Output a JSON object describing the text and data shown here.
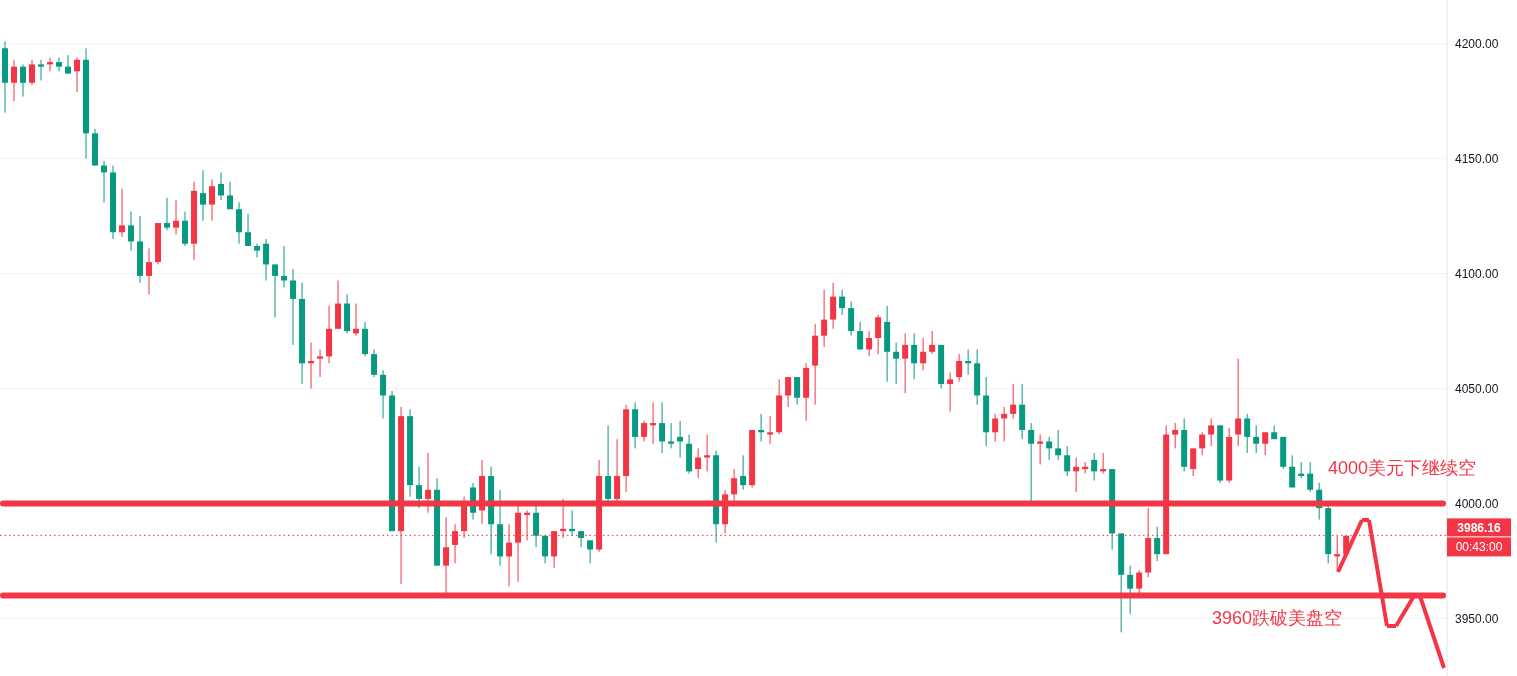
{
  "chart_data": {
    "type": "candlestick",
    "categories": [
      null,
      null,
      null,
      null,
      null,
      null,
      null,
      null,
      null,
      null,
      null,
      null,
      null,
      null,
      null,
      null,
      null,
      null,
      null,
      null,
      null,
      null,
      null,
      null,
      null,
      null,
      null,
      null,
      null,
      null,
      null,
      null,
      null,
      null,
      null,
      null,
      null,
      null,
      null,
      null,
      null,
      null,
      null,
      null,
      null,
      null,
      null,
      null,
      null,
      null,
      null,
      null,
      null,
      null,
      null,
      null,
      null,
      null,
      null,
      null,
      null,
      null,
      null,
      null,
      null,
      null,
      null,
      null,
      null,
      null,
      null,
      null,
      null,
      null,
      null,
      null,
      null,
      null,
      null,
      null,
      null,
      null,
      null,
      null,
      null,
      null,
      null,
      null,
      null,
      null,
      null,
      null,
      null,
      null,
      null,
      null,
      null,
      null,
      null,
      null,
      null,
      null,
      null,
      null,
      null,
      null,
      null,
      null,
      null,
      null,
      null,
      null,
      null,
      null,
      null,
      null,
      null,
      null,
      null,
      null,
      null,
      null,
      null,
      null,
      null,
      null,
      null,
      null,
      null,
      null,
      null,
      null,
      null,
      null,
      null,
      null,
      null,
      null,
      null,
      null,
      null,
      null,
      null,
      null,
      null,
      null,
      null,
      null,
      null,
      null,
      null,
      null,
      null,
      null,
      null,
      null,
      null,
      null,
      null,
      null,
      null
    ],
    "ohlc": [
      [
        4198,
        4201,
        4170,
        4183
      ],
      [
        4183,
        4193,
        4175,
        4190
      ],
      [
        4190,
        4191,
        4177,
        4183
      ],
      [
        4183,
        4193,
        4182,
        4191
      ],
      [
        4191,
        4193,
        4184,
        4190
      ],
      [
        4191,
        4194,
        4188,
        4192
      ],
      [
        4192,
        4194,
        4188,
        4190
      ],
      [
        4190,
        4195,
        4187,
        4187
      ],
      [
        4188,
        4194,
        4179,
        4193
      ],
      [
        4193,
        4198,
        4150,
        4161
      ],
      [
        4161,
        4163,
        4147,
        4147
      ],
      [
        4147,
        4149,
        4131,
        4144
      ],
      [
        4144,
        4147,
        4115,
        4118
      ],
      [
        4118,
        4137,
        4116,
        4121
      ],
      [
        4121,
        4127,
        4110,
        4114
      ],
      [
        4114,
        4125,
        4096,
        4099
      ],
      [
        4099,
        4111,
        4091,
        4105
      ],
      [
        4105,
        4122,
        4104,
        4122
      ],
      [
        4122,
        4133,
        4119,
        4120
      ],
      [
        4120,
        4132,
        4117,
        4123
      ],
      [
        4123,
        4127,
        4112,
        4113
      ],
      [
        4113,
        4140,
        4106,
        4136
      ],
      [
        4135,
        4145,
        4123,
        4130
      ],
      [
        4130,
        4141,
        4123,
        4138
      ],
      [
        4139,
        4144,
        4132,
        4134
      ],
      [
        4134,
        4140,
        4128,
        4128
      ],
      [
        4128,
        4131,
        4113,
        4118
      ],
      [
        4118,
        4126,
        4112,
        4112
      ],
      [
        4112,
        4113,
        4107,
        4110
      ],
      [
        4113,
        4115,
        4097,
        4104
      ],
      [
        4104,
        4104,
        4081,
        4099
      ],
      [
        4099,
        4112,
        4094,
        4097
      ],
      [
        4097,
        4102,
        4069,
        4089
      ],
      [
        4089,
        4096,
        4052,
        4061
      ],
      [
        4061,
        4070,
        4050,
        4062
      ],
      [
        4063,
        4067,
        4055,
        4064
      ],
      [
        4064,
        4086,
        4061,
        4076
      ],
      [
        4076,
        4097,
        4076,
        4087
      ],
      [
        4087,
        4091,
        4074,
        4075
      ],
      [
        4074,
        4087,
        4073,
        4076
      ],
      [
        4076,
        4079,
        4064,
        4065
      ],
      [
        4065,
        4067,
        4055,
        4056
      ],
      [
        4056,
        4058,
        4037,
        4047
      ],
      [
        4047,
        4049,
        3988,
        3988
      ],
      [
        3988,
        4042,
        3965,
        4038
      ],
      [
        4038,
        4041,
        4003,
        4008
      ],
      [
        4008,
        4016,
        3998,
        4002
      ],
      [
        4002,
        4022,
        3996,
        4006
      ],
      [
        4006,
        4011,
        3973,
        3973
      ],
      [
        3973,
        3994,
        3959,
        3981
      ],
      [
        3982,
        3991,
        3974,
        3988
      ],
      [
        3988,
        4003,
        3985,
        4001
      ],
      [
        4007,
        4009,
        3993,
        3996
      ],
      [
        3997,
        4019,
        3991,
        4012
      ],
      [
        4012,
        4016,
        3978,
        3991
      ],
      [
        3991,
        4006,
        3973,
        3977
      ],
      [
        3977,
        3991,
        3964,
        3983
      ],
      [
        3983,
        4001,
        3966,
        3996
      ],
      [
        3995,
        3997,
        3984,
        3996
      ],
      [
        3996,
        4000,
        3981,
        3986
      ],
      [
        3986,
        3986,
        3974,
        3977
      ],
      [
        3977,
        3988,
        3972,
        3988
      ],
      [
        3988,
        4002,
        3985,
        3989
      ],
      [
        3989,
        3997,
        3986,
        3988
      ],
      [
        3988,
        3988,
        3981,
        3985
      ],
      [
        3984,
        3984,
        3974,
        3980
      ],
      [
        3980,
        4019,
        3979,
        4012
      ],
      [
        4012,
        4034,
        4001,
        4002
      ],
      [
        4002,
        4028,
        3999,
        4012
      ],
      [
        4012,
        4043,
        4005,
        4041
      ],
      [
        4041,
        4044,
        4024,
        4029
      ],
      [
        4029,
        4036,
        4027,
        4035
      ],
      [
        4034,
        4044,
        4026,
        4035
      ],
      [
        4035,
        4044,
        4022,
        4027
      ],
      [
        4027,
        4035,
        4024,
        4026
      ],
      [
        4029,
        4036,
        4020,
        4027
      ],
      [
        4026,
        4030,
        4013,
        4014
      ],
      [
        4015,
        4024,
        4011,
        4020
      ],
      [
        4020,
        4030,
        4014,
        4021
      ],
      [
        4021,
        4023,
        3983,
        3991
      ],
      [
        3991,
        4006,
        3987,
        4004
      ],
      [
        4004,
        4015,
        3999,
        4011
      ],
      [
        4012,
        4021,
        4006,
        4008
      ],
      [
        4008,
        4032,
        4007,
        4032
      ],
      [
        4032,
        4039,
        4027,
        4031
      ],
      [
        4030,
        4038,
        4026,
        4031
      ],
      [
        4031,
        4054,
        4030,
        4047
      ],
      [
        4047,
        4055,
        4042,
        4055
      ],
      [
        4055,
        4055,
        4043,
        4046
      ],
      [
        4046,
        4061,
        4036,
        4059
      ],
      [
        4060,
        4078,
        4043,
        4073
      ],
      [
        4073,
        4093,
        4068,
        4080
      ],
      [
        4080,
        4096,
        4076,
        4090
      ],
      [
        4090,
        4093,
        4082,
        4085
      ],
      [
        4085,
        4088,
        4073,
        4075
      ],
      [
        4075,
        4079,
        4067,
        4067
      ],
      [
        4067,
        4075,
        4064,
        4072
      ],
      [
        4072,
        4082,
        4065,
        4081
      ],
      [
        4079,
        4086,
        4053,
        4066
      ],
      [
        4066,
        4070,
        4052,
        4063
      ],
      [
        4063,
        4074,
        4048,
        4069
      ],
      [
        4069,
        4074,
        4054,
        4061
      ],
      [
        4061,
        4072,
        4058,
        4066
      ],
      [
        4066,
        4075,
        4065,
        4069
      ],
      [
        4069,
        4069,
        4050,
        4052
      ],
      [
        4052,
        4057,
        4040,
        4054
      ],
      [
        4055,
        4065,
        4053,
        4062
      ],
      [
        4062,
        4067,
        4056,
        4061
      ],
      [
        4061,
        4067,
        4043,
        4047
      ],
      [
        4047,
        4055,
        4025,
        4031
      ],
      [
        4031,
        4039,
        4027,
        4037
      ],
      [
        4037,
        4042,
        4027,
        4039
      ],
      [
        4039,
        4052,
        4037,
        4043
      ],
      [
        4043,
        4052,
        4028,
        4032
      ],
      [
        4032,
        4035,
        4001,
        4026
      ],
      [
        4026,
        4030,
        4017,
        4027
      ],
      [
        4027,
        4029,
        4019,
        4024
      ],
      [
        4024,
        4032,
        4019,
        4021
      ],
      [
        4021,
        4025,
        4012,
        4014
      ],
      [
        4014,
        4020,
        4005,
        4016
      ],
      [
        4015,
        4018,
        4013,
        4016
      ],
      [
        4019,
        4022,
        4010,
        4014
      ],
      [
        4014,
        4022,
        4013,
        4015
      ],
      [
        4015,
        4015,
        3980,
        3987
      ],
      [
        3987,
        3987,
        3944,
        3969
      ],
      [
        3969,
        3973,
        3952,
        3963
      ],
      [
        3963,
        3971,
        3960,
        3970
      ],
      [
        3970,
        3998,
        3968,
        3985
      ],
      [
        3985,
        3990,
        3975,
        3978
      ],
      [
        3978,
        4034,
        3978,
        4030
      ],
      [
        4030,
        4035,
        4024,
        4032
      ],
      [
        4032,
        4037,
        4014,
        4016
      ],
      [
        4015,
        4024,
        4012,
        4024
      ],
      [
        4024,
        4031,
        4021,
        4030
      ],
      [
        4030,
        4037,
        4025,
        4034
      ],
      [
        4034,
        4034,
        4009,
        4010
      ],
      [
        4010,
        4033,
        4009,
        4029
      ],
      [
        4030,
        4063,
        4025,
        4037
      ],
      [
        4037,
        4039,
        4022,
        4029
      ],
      [
        4029,
        4034,
        4022,
        4026
      ],
      [
        4026,
        4031,
        4021,
        4031
      ],
      [
        4031,
        4034,
        4028,
        4028
      ],
      [
        4029,
        4029,
        4015,
        4016
      ],
      [
        4016,
        4021,
        4007,
        4007
      ],
      [
        4013,
        4018,
        4011,
        4012
      ],
      [
        4013,
        4018,
        4005,
        4006
      ],
      [
        4006,
        4009,
        3993,
        3998
      ],
      [
        3998,
        4000,
        3974,
        3978
      ],
      [
        3977,
        3986,
        3971,
        3978
      ],
      [
        3978,
        3986,
        3978,
        3986
      ],
      null,
      null,
      null,
      null,
      null,
      null,
      null,
      null,
      null,
      null,
      null
    ],
    "colors": [
      "#089981",
      "#f23645",
      "#089981",
      "#f23645",
      "#089981",
      "#f23645",
      "#089981",
      "#089981",
      "#f23645",
      "#089981",
      "#089981",
      "#089981",
      "#089981",
      "#f23645",
      "#089981",
      "#089981",
      "#f23645",
      "#f23645",
      "#089981",
      "#f23645",
      "#089981",
      "#f23645",
      "#089981",
      "#f23645",
      "#089981",
      "#089981",
      "#089981",
      "#089981",
      "#089981",
      "#089981",
      "#089981",
      "#089981",
      "#089981",
      "#089981",
      "#f23645",
      "#f23645",
      "#f23645",
      "#f23645",
      "#089981",
      "#f23645",
      "#089981",
      "#089981",
      "#089981",
      "#089981",
      "#f23645",
      "#089981",
      "#089981",
      "#f23645",
      "#089981",
      "#f23645",
      "#f23645",
      "#f23645",
      "#089981",
      "#f23645",
      "#089981",
      "#089981",
      "#f23645",
      "#f23645",
      "#f23645",
      "#089981",
      "#089981",
      "#f23645",
      "#f23645",
      "#089981",
      "#089981",
      "#089981",
      "#f23645",
      "#089981",
      "#f23645",
      "#f23645",
      "#089981",
      "#f23645",
      "#f23645",
      "#089981",
      "#089981",
      "#089981",
      "#089981",
      "#f23645",
      "#f23645",
      "#089981",
      "#f23645",
      "#f23645",
      "#089981",
      "#f23645",
      "#089981",
      "#f23645",
      "#f23645",
      "#f23645",
      "#089981",
      "#f23645",
      "#f23645",
      "#f23645",
      "#f23645",
      "#089981",
      "#089981",
      "#089981",
      "#f23645",
      "#f23645",
      "#089981",
      "#089981",
      "#f23645",
      "#089981",
      "#f23645",
      "#f23645",
      "#089981",
      "#f23645",
      "#f23645",
      "#089981",
      "#089981",
      "#089981",
      "#f23645",
      "#f23645",
      "#f23645",
      "#089981",
      "#089981",
      "#f23645",
      "#089981",
      "#089981",
      "#089981",
      "#f23645",
      "#f23645",
      "#089981",
      "#f23645",
      "#089981",
      "#089981",
      "#089981",
      "#f23645",
      "#f23645",
      "#089981",
      "#f23645",
      "#f23645",
      "#089981",
      "#f23645",
      "#f23645",
      "#f23645",
      "#089981",
      "#f23645",
      "#f23645",
      "#089981",
      "#089981",
      "#f23645",
      "#089981",
      "#089981",
      "#089981",
      "#089981",
      "#089981",
      "#089981",
      "#089981",
      "#f23645",
      "#f23645",
      null,
      null,
      null,
      null,
      null,
      null,
      null,
      null,
      null,
      null,
      null
    ],
    "ylim": [
      3925,
      4219
    ],
    "yticks": [
      {
        "value": 3950,
        "label": "3950.00"
      },
      {
        "value": 4000,
        "label": "4000.00"
      },
      {
        "value": 4050,
        "label": "4050.00"
      },
      {
        "value": 4100,
        "label": "4100.00"
      },
      {
        "value": 4150,
        "label": "4150.00"
      },
      {
        "value": 4200,
        "label": "4200.00"
      }
    ],
    "grid": "y",
    "ref_lines": [
      {
        "axis": "y",
        "value": 4000,
        "label": "4000美元下继续空",
        "color": "#f23645"
      },
      {
        "axis": "y",
        "value": 3960,
        "label": "3960跌破美盘空",
        "color": "#f23645"
      },
      {
        "axis": "y",
        "value": 3986.16,
        "label": "3986.16",
        "color": "#f23645",
        "line_style": "dotted"
      }
    ],
    "annotations": [
      "00:43:00"
    ]
  }
}
